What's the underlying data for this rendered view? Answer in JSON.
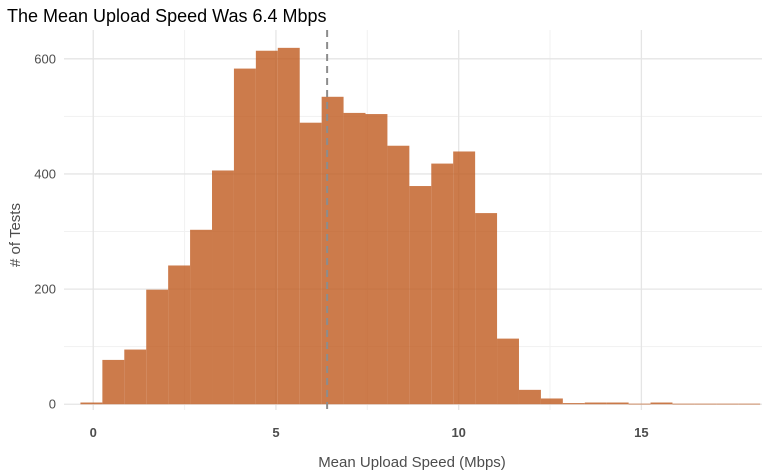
{
  "chart_data": {
    "type": "bar",
    "title": "The Mean Upload Speed Was 6.4 Mbps",
    "xlabel": "Mean Upload Speed (Mbps)",
    "ylabel": "# of Tests",
    "xlim": [
      -0.8,
      18.3
    ],
    "ylim": [
      -10,
      650
    ],
    "x_ticks": [
      {
        "value": 0,
        "label": "0"
      },
      {
        "value": 5,
        "label": "5"
      },
      {
        "value": 10,
        "label": "10"
      },
      {
        "value": 15,
        "label": "15"
      }
    ],
    "y_ticks": [
      {
        "value": 0,
        "label": "0"
      },
      {
        "value": 200,
        "label": "200"
      },
      {
        "value": 400,
        "label": "400"
      },
      {
        "value": 600,
        "label": "600"
      }
    ],
    "bin_width": 0.6,
    "bin_start": -0.35,
    "values": [
      3,
      77,
      95,
      199,
      241,
      303,
      406,
      583,
      614,
      619,
      489,
      534,
      506,
      504,
      449,
      379,
      418,
      439,
      332,
      114,
      25,
      10,
      2,
      3,
      3,
      1,
      3,
      1,
      1,
      1,
      1
    ],
    "mean_line": 6.4,
    "grid": true,
    "legend": "none",
    "colors": {
      "bar_fill": "#BF5A1E",
      "bar_opacity": 0.8,
      "mean_line": "#8c8c8c",
      "grid_major": "#e5e5e5",
      "grid_minor": "#f1f1f1"
    }
  }
}
